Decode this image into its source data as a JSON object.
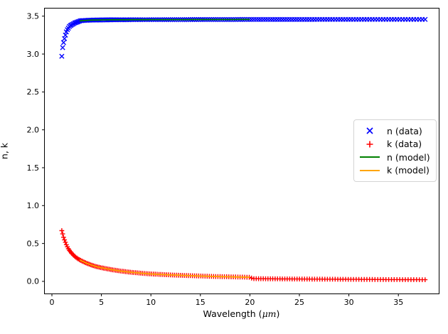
{
  "chart_data": {
    "type": "scatter",
    "title": "",
    "xlabel": "Wavelength (μm)",
    "xlabel_parts": {
      "prefix": "Wavelength (",
      "math": "μm",
      "suffix": ")"
    },
    "ylabel": "n, k",
    "xlim": [
      -0.79,
      39.08
    ],
    "ylim": [
      -0.16,
      3.61
    ],
    "xtick_labels": [
      "0",
      "5",
      "10",
      "15",
      "20",
      "25",
      "30",
      "35"
    ],
    "ytick_labels": [
      "0.0",
      "0.5",
      "1.0",
      "1.5",
      "2.0",
      "2.5",
      "3.0",
      "3.5"
    ],
    "grid": false,
    "legend_position": "center right",
    "sampling": {
      "lambda_min": 1.0,
      "lambda_max": 37.7,
      "n_points": 180,
      "power": 1.5
    },
    "series": [
      {
        "name": "n (data)",
        "kind": "scatter",
        "marker": "x",
        "color": "#0000ff",
        "anchors_x": [
          1.0,
          1.05,
          1.1,
          1.22,
          1.34,
          1.5,
          1.8,
          2.3,
          2.9,
          4,
          6,
          10,
          15,
          20,
          30,
          37.7
        ],
        "anchors_y": [
          2.97,
          3.04,
          3.1,
          3.18,
          3.24,
          3.31,
          3.37,
          3.41,
          3.44,
          3.448,
          3.452,
          3.454,
          3.455,
          3.456,
          3.457,
          3.457
        ]
      },
      {
        "name": "k (data)",
        "kind": "scatter",
        "marker": "plus",
        "color": "#ff0000",
        "anchors_x": [
          1.0,
          1.1,
          1.2,
          1.35,
          1.5,
          1.7,
          2.0,
          2.3,
          2.6,
          3.0,
          3.5,
          4.0,
          4.5,
          5.0,
          6,
          7,
          8,
          9,
          10,
          12,
          14,
          16,
          18,
          20.0,
          20.3,
          23,
          26,
          30,
          34,
          37.7
        ],
        "anchors_y": [
          0.67,
          0.62,
          0.57,
          0.52,
          0.47,
          0.42,
          0.37,
          0.33,
          0.3,
          0.27,
          0.24,
          0.215,
          0.195,
          0.18,
          0.155,
          0.135,
          0.12,
          0.108,
          0.098,
          0.085,
          0.075,
          0.066,
          0.06,
          0.054,
          0.036,
          0.033,
          0.03,
          0.027,
          0.024,
          0.022
        ]
      },
      {
        "name": "n (model)",
        "kind": "line",
        "color": "#008000",
        "x_range": [
          2.8,
          20.0
        ],
        "follows": 0
      },
      {
        "name": "k (model)",
        "kind": "line",
        "color": "#ffa500",
        "x_range": [
          2.8,
          20.0
        ],
        "follows": 1
      }
    ],
    "spine_color": "#000000",
    "tick_color": "#000000"
  },
  "legend": {
    "entries": [
      {
        "label": "n (data)"
      },
      {
        "label": "k (data)"
      },
      {
        "label": "n (model)"
      },
      {
        "label": "k (model)"
      }
    ]
  }
}
